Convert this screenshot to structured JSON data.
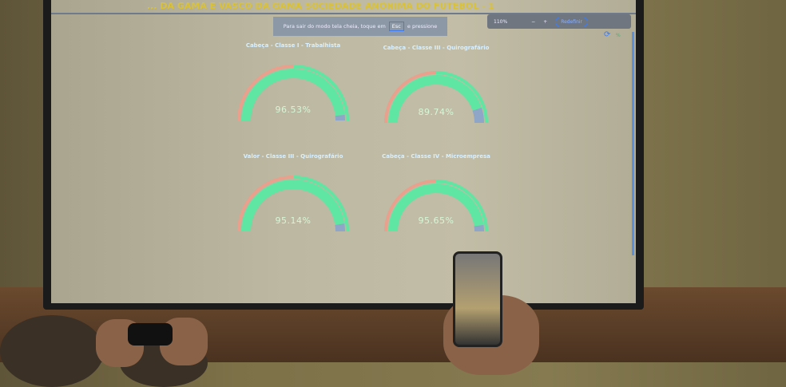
{
  "app": {
    "title": "... DA GAMA E VASCO DA GAMA SOCIEDADE ANÔNIMA DO FUTEBOL - 1"
  },
  "fullscreen_notice": {
    "text_before": "Para sair do modo tela cheia, toque em",
    "key": "Esc",
    "text_after": "e pressione"
  },
  "zoom_bar": {
    "level": "110%",
    "minus": "−",
    "plus": "+",
    "reset": "Redefinir"
  },
  "toolbar": {
    "refresh_icon": "refresh-icon",
    "percent": "%"
  },
  "colors": {
    "approve": "#5ee6a2",
    "reject": "#e9a08c",
    "abstain": "#8fa6c8"
  },
  "gauges": [
    {
      "title": "Cabeça - Classe I - Trabalhista",
      "value": "96.53%",
      "fraction": 0.9653
    },
    {
      "title": "Cabeça - Classe III - Quirografário",
      "value": "89.74%",
      "fraction": 0.8974
    },
    {
      "title": "Valor - Classe III - Quirografário",
      "value": "95.14%",
      "fraction": 0.9514
    },
    {
      "title": "Cabeça - Classe IV - Microempresa",
      "value": "95.65%",
      "fraction": 0.9565
    }
  ]
}
